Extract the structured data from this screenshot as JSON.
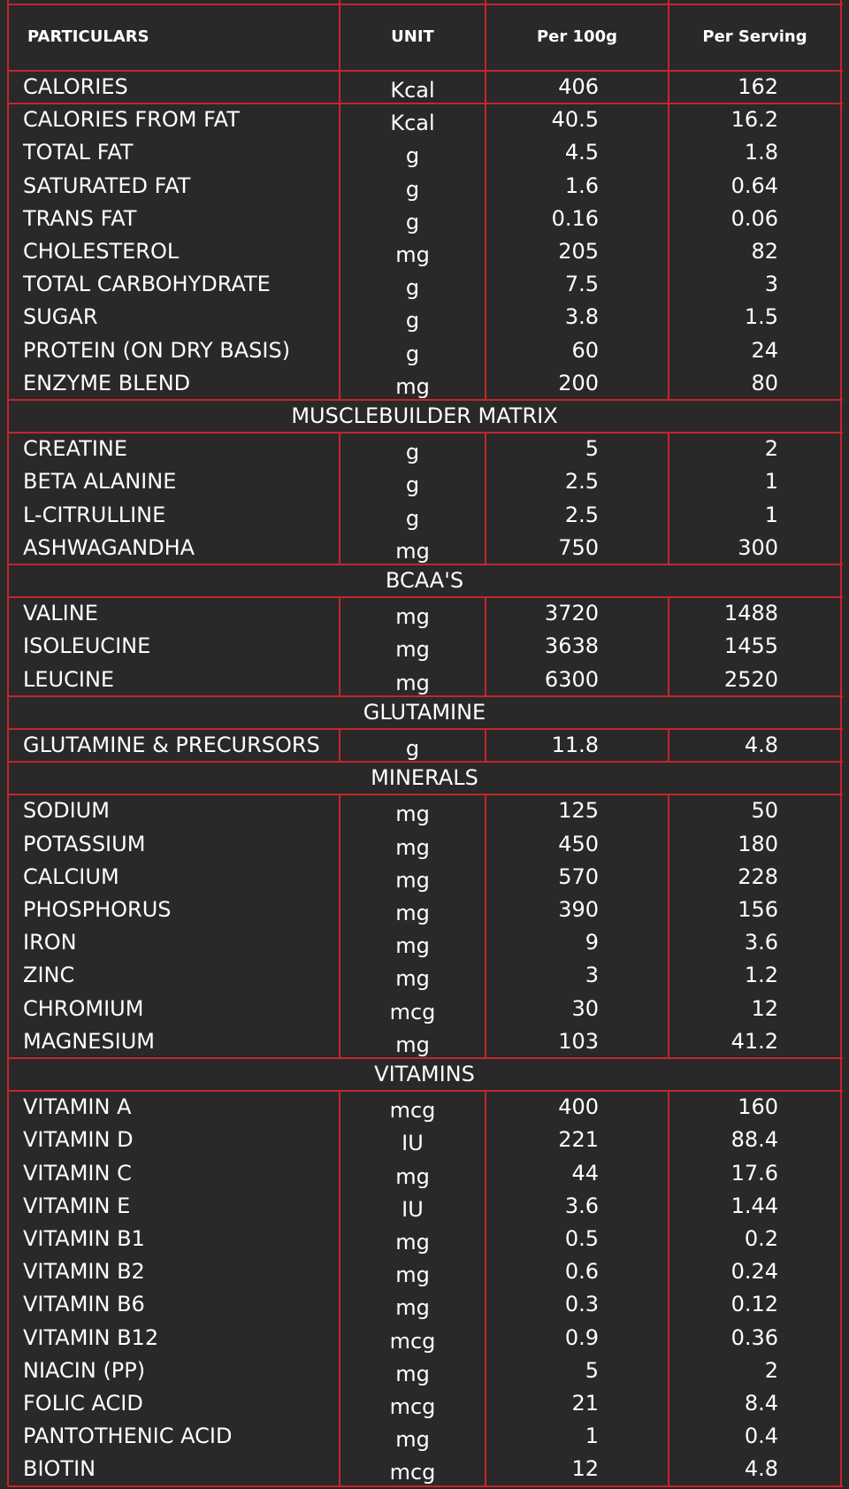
{
  "header": [
    "PARTICULARS",
    "UNIT",
    "Per 100g",
    "Per Serving"
  ],
  "sections": [
    {
      "rows": [
        [
          "CALORIES",
          "Kcal",
          "406",
          "162"
        ]
      ]
    },
    {
      "rows": [
        [
          "CALORIES FROM FAT",
          "Kcal",
          "40.5",
          "16.2"
        ],
        [
          "TOTAL FAT",
          "g",
          "4.5",
          "1.8"
        ],
        [
          "SATURATED FAT",
          "g",
          "1.6",
          "0.64"
        ],
        [
          "TRANS FAT",
          "g",
          "0.16",
          "0.06"
        ],
        [
          "CHOLESTEROL",
          "mg",
          "205",
          "82"
        ],
        [
          "TOTAL CARBOHYDRATE",
          "g",
          "7.5",
          "3"
        ],
        [
          "SUGAR",
          "g",
          "3.8",
          "1.5"
        ],
        [
          "PROTEIN (ON DRY BASIS)",
          "g",
          "60",
          "24"
        ],
        [
          "ENZYME BLEND",
          "mg",
          "200",
          "80"
        ]
      ]
    },
    {
      "title": "MUSCLEBUILDER MATRIX",
      "rows": [
        [
          "CREATINE",
          "g",
          "5",
          "2"
        ],
        [
          "BETA ALANINE",
          "g",
          "2.5",
          "1"
        ],
        [
          "L-CITRULLINE",
          "g",
          "2.5",
          "1"
        ],
        [
          "ASHWAGANDHA",
          "mg",
          "750",
          "300"
        ]
      ]
    },
    {
      "title": "BCAA'S",
      "rows": [
        [
          "VALINE",
          "mg",
          "3720",
          "1488"
        ],
        [
          "ISOLEUCINE",
          "mg",
          "3638",
          "1455"
        ],
        [
          "LEUCINE",
          "mg",
          "6300",
          "2520"
        ]
      ]
    },
    {
      "title": "GLUTAMINE",
      "rows": [
        [
          "GLUTAMINE & PRECURSORS",
          "g",
          "11.8",
          "4.8"
        ]
      ]
    },
    {
      "title": "MINERALS",
      "rows": [
        [
          "SODIUM",
          "mg",
          "125",
          "50"
        ],
        [
          "POTASSIUM",
          "mg",
          "450",
          "180"
        ],
        [
          "CALCIUM",
          "mg",
          "570",
          "228"
        ],
        [
          "PHOSPHORUS",
          "mg",
          "390",
          "156"
        ],
        [
          "IRON",
          "mg",
          "9",
          "3.6"
        ],
        [
          "ZINC",
          "mg",
          "3",
          "1.2"
        ],
        [
          "CHROMIUM",
          "mcg",
          "30",
          "12"
        ],
        [
          "MAGNESIUM",
          "mg",
          "103",
          "41.2"
        ]
      ]
    },
    {
      "title": "VITAMINS",
      "rows": [
        [
          "VITAMIN A",
          "mcg",
          "400",
          "160"
        ],
        [
          "VITAMIN D",
          "IU",
          "221",
          "88.4"
        ],
        [
          "VITAMIN C",
          "mg",
          "44",
          "17.6"
        ],
        [
          "VITAMIN E",
          "IU",
          "3.6",
          "1.44"
        ],
        [
          "VITAMIN B1",
          "mg",
          "0.5",
          "0.2"
        ],
        [
          "VITAMIN B2",
          "mg",
          "0.6",
          "0.24"
        ],
        [
          "VITAMIN B6",
          "mg",
          "0.3",
          "0.12"
        ],
        [
          "VITAMIN B12",
          "mcg",
          "0.9",
          "0.36"
        ],
        [
          "NIACIN (PP)",
          "mg",
          "5",
          "2"
        ],
        [
          "FOLIC ACID",
          "mcg",
          "21",
          "8.4"
        ],
        [
          "PANTOTHENIC ACID",
          "mg",
          "1",
          "0.4"
        ],
        [
          "BIOTIN",
          "mcg",
          "12",
          "4.8"
        ]
      ]
    }
  ]
}
